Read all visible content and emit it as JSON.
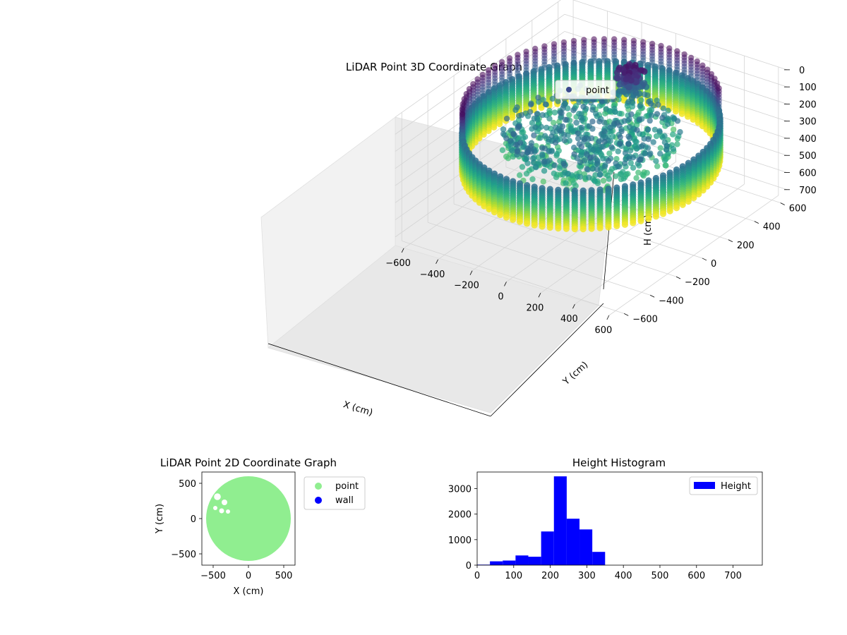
{
  "chart_data": [
    {
      "type": "scatter",
      "projection": "3d",
      "title": "LiDAR Point 3D Coordinate Graph",
      "xlabel": "X (cm)",
      "ylabel": "Y (cm)",
      "zlabel": "H (cm)",
      "x_ticks": [
        "−600",
        "−400",
        "−200",
        "0",
        "200",
        "400",
        "600"
      ],
      "y_ticks": [
        "−600",
        "−400",
        "−200",
        "0",
        "200",
        "400",
        "600"
      ],
      "z_ticks": [
        "0",
        "100",
        "200",
        "300",
        "400",
        "500",
        "600",
        "700"
      ],
      "xlim": [
        -650,
        650
      ],
      "ylim": [
        -650,
        650
      ],
      "zlim": [
        0,
        750
      ],
      "z_inverted": true,
      "grid": true,
      "legend": {
        "position": "top-right",
        "entries": [
          {
            "label": "point",
            "color": "#3b4a8c"
          }
        ]
      },
      "colormap": "viridis",
      "wall": {
        "radius_cm": 600,
        "h_range": [
          190,
          420
        ]
      },
      "floor_blob": {
        "radius_cm": 420,
        "h_range": [
          180,
          320
        ]
      },
      "inner_structure": {
        "center": [
          -60,
          380
        ],
        "h_range": [
          80,
          220
        ]
      }
    },
    {
      "type": "scatter",
      "title": "LiDAR Point 2D Coordinate Graph",
      "xlabel": "X (cm)",
      "ylabel": "Y (cm)",
      "x_ticks": [
        "−500",
        "0",
        "500"
      ],
      "y_ticks": [
        "500",
        "0",
        "−500"
      ],
      "xlim": [
        -660,
        660
      ],
      "ylim": [
        -660,
        660
      ],
      "legend": {
        "position": "outside-right",
        "entries": [
          {
            "label": "point",
            "color": "#90ee90"
          },
          {
            "label": "wall",
            "color": "#0000ff"
          }
        ]
      },
      "disk": {
        "radius_cm": 600,
        "color": "#90ee90"
      },
      "holes": [
        {
          "x": -520,
          "y": 470,
          "r": 55
        },
        {
          "x": -390,
          "y": 520,
          "r": 40
        },
        {
          "x": -440,
          "y": 310,
          "r": 48
        },
        {
          "x": -340,
          "y": 230,
          "r": 40
        },
        {
          "x": -380,
          "y": 110,
          "r": 35
        },
        {
          "x": -290,
          "y": 100,
          "r": 30
        },
        {
          "x": -470,
          "y": 150,
          "r": 30
        },
        {
          "x": -560,
          "y": 330,
          "r": 35
        }
      ]
    },
    {
      "type": "bar",
      "title": "Height Histogram",
      "xlabel": "",
      "ylabel": "",
      "series": [
        {
          "name": "Height",
          "color": "#0000ff"
        }
      ],
      "bin_edges": [
        0,
        35,
        70,
        105,
        140,
        175,
        210,
        245,
        280,
        315,
        350
      ],
      "values": [
        20,
        150,
        180,
        380,
        330,
        1320,
        3480,
        1820,
        1400,
        520
      ],
      "xlim": [
        0,
        780
      ],
      "ylim": [
        0,
        3650
      ],
      "x_ticks": [
        0,
        100,
        200,
        300,
        400,
        500,
        600,
        700
      ],
      "y_ticks": [
        0,
        1000,
        2000,
        3000
      ],
      "legend": {
        "position": "top-right",
        "entries": [
          {
            "label": "Height",
            "color": "#0000ff"
          }
        ]
      }
    }
  ]
}
